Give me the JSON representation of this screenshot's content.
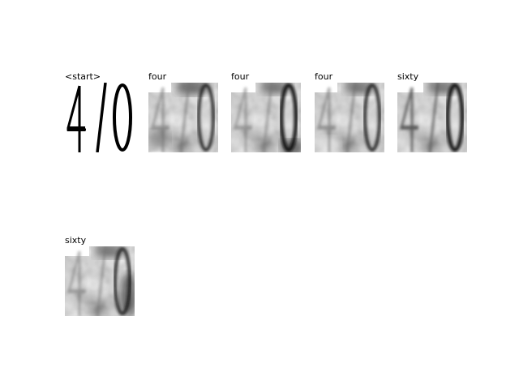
{
  "panels": [
    {
      "title": "<start>",
      "image": "digits-470-source"
    },
    {
      "title": "four",
      "image": "digits-470-attention-map"
    },
    {
      "title": "four",
      "image": "digits-470-attention-map"
    },
    {
      "title": "four",
      "image": "digits-470-attention-map"
    },
    {
      "title": "sixty",
      "image": "digits-470-attention-map"
    },
    {
      "title": "sixty",
      "image": "digits-470-attention-map"
    }
  ]
}
